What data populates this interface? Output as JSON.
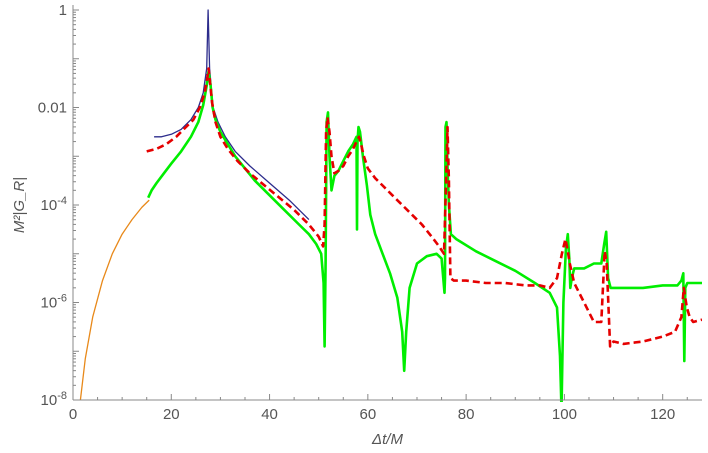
{
  "chart_data": {
    "type": "line",
    "title": "",
    "xlabel": "Δt/M",
    "ylabel": "M²|G_R|",
    "xlim": [
      0,
      128
    ],
    "ylim_log10": [
      -8,
      0
    ],
    "y_scale": "log",
    "grid": false,
    "x_ticks": [
      {
        "value": 0,
        "label": "0"
      },
      {
        "value": 20,
        "label": "20"
      },
      {
        "value": 40,
        "label": "40"
      },
      {
        "value": 60,
        "label": "60"
      },
      {
        "value": 80,
        "label": "80"
      },
      {
        "value": 100,
        "label": "100"
      },
      {
        "value": 120,
        "label": "120"
      }
    ],
    "y_ticks": [
      {
        "log10": 0,
        "label": "1"
      },
      {
        "log10": -2,
        "label": "0.01"
      },
      {
        "log10": -4,
        "label": "10^-4"
      },
      {
        "log10": -6,
        "label": "10^-6"
      },
      {
        "log10": -8,
        "label": "10^-8"
      }
    ],
    "series": [
      {
        "color": "#e8891a",
        "style": "solid-thin",
        "x": [
          1.5,
          2.5,
          4,
          6,
          8,
          10,
          12,
          14,
          15.5
        ],
        "log10y": [
          -8.0,
          -7.15,
          -6.3,
          -5.55,
          -5.0,
          -4.6,
          -4.3,
          -4.05,
          -3.9
        ]
      },
      {
        "color": "#2c2c8c",
        "style": "solid-thin",
        "x": [
          16.5,
          18,
          20,
          22,
          24,
          25.5,
          26.5,
          27.2,
          27.5,
          27.8,
          28.5,
          29.5,
          31,
          33,
          36,
          40,
          44,
          48
        ],
        "log10y": [
          -2.6,
          -2.6,
          -2.55,
          -2.45,
          -2.25,
          -2.0,
          -1.7,
          -1.2,
          0.0,
          -1.2,
          -2.0,
          -2.3,
          -2.6,
          -2.9,
          -3.2,
          -3.55,
          -3.9,
          -4.3
        ]
      },
      {
        "color": "#00ee00",
        "style": "solid-thick",
        "x": [
          15.3,
          16,
          17,
          18.5,
          20,
          22,
          24,
          25.5,
          26.5,
          27.2,
          27.6,
          28.0,
          28.4,
          29,
          30,
          31.5,
          33,
          35,
          37,
          40,
          43,
          46,
          48,
          49.5,
          50.5,
          51.0,
          51.2,
          51.4,
          51.6,
          51.9,
          52.2,
          52.6,
          53.2,
          54,
          55,
          56,
          57,
          57.7,
          57.8,
          57.9,
          58.1,
          58.4,
          59,
          59.8,
          60.5,
          61.5,
          63,
          64.5,
          66,
          67,
          67.4,
          67.8,
          68.5,
          70,
          72,
          74,
          75,
          75.6,
          75.7,
          75.8,
          76.0,
          76.2,
          76.5,
          76.9,
          78,
          82,
          86,
          90,
          94,
          97,
          98.5,
          99.1,
          99.4,
          99.8,
          100.3,
          100.7,
          101.0,
          101.2,
          101.5,
          102,
          104,
          106,
          107.5,
          108.1,
          108.5,
          108.9,
          109.4,
          112,
          116,
          120,
          123,
          123.8,
          124.2,
          124.4,
          124.6,
          125,
          126,
          128
        ],
        "log10y": [
          -3.85,
          -3.7,
          -3.55,
          -3.35,
          -3.15,
          -2.9,
          -2.6,
          -2.3,
          -1.95,
          -1.55,
          -1.25,
          -1.55,
          -2.0,
          -2.25,
          -2.5,
          -2.75,
          -3.0,
          -3.25,
          -3.5,
          -3.8,
          -4.1,
          -4.4,
          -4.6,
          -4.8,
          -5.0,
          -5.6,
          -6.9,
          -5.2,
          -2.3,
          -2.1,
          -3.0,
          -3.7,
          -3.4,
          -3.3,
          -3.1,
          -2.9,
          -2.75,
          -2.6,
          -4.5,
          -2.7,
          -2.4,
          -2.5,
          -3.0,
          -3.6,
          -4.2,
          -4.6,
          -5.0,
          -5.4,
          -5.9,
          -6.6,
          -7.4,
          -6.6,
          -5.7,
          -5.2,
          -5.05,
          -5.0,
          -5.1,
          -5.8,
          -5.5,
          -2.4,
          -2.3,
          -3.2,
          -4.0,
          -4.6,
          -4.7,
          -4.95,
          -5.15,
          -5.35,
          -5.6,
          -5.8,
          -6.1,
          -7.1,
          -8.2,
          -6.0,
          -4.9,
          -4.6,
          -5.1,
          -5.7,
          -5.5,
          -5.3,
          -5.3,
          -5.2,
          -5.2,
          -4.8,
          -4.55,
          -5.5,
          -5.7,
          -5.7,
          -5.7,
          -5.65,
          -5.65,
          -5.55,
          -5.4,
          -7.2,
          -5.7,
          -5.6,
          -5.6,
          -5.6
        ]
      },
      {
        "color": "#e50000",
        "style": "dashed-thick",
        "x": [
          15,
          17,
          19,
          21,
          23,
          24.5,
          25.8,
          26.8,
          27.4,
          27.6,
          27.8,
          28.3,
          29,
          30,
          31.5,
          33.5,
          36,
          39,
          42,
          45,
          48,
          50,
          50.9,
          51.2,
          51.5,
          51.8,
          52.2,
          52.6,
          53.2,
          54,
          55,
          56,
          57,
          57.7,
          58.2,
          58.6,
          59.2,
          60,
          61.5,
          63,
          65,
          67,
          69,
          71,
          73,
          74.5,
          75.5,
          75.9,
          76.2,
          76.5,
          76.8,
          77.5,
          80,
          84,
          88,
          92,
          95,
          97,
          98.5,
          99.5,
          100.2,
          100.6,
          101.1,
          102,
          104,
          106,
          107.5,
          108.2,
          108.6,
          109.3,
          110,
          112,
          116,
          120,
          122.5,
          123.8,
          124.3,
          124.9,
          125.5,
          126.2,
          128
        ],
        "log10y": [
          -2.9,
          -2.85,
          -2.75,
          -2.6,
          -2.4,
          -2.25,
          -2.0,
          -1.7,
          -1.35,
          -1.2,
          -1.4,
          -1.9,
          -2.3,
          -2.6,
          -2.85,
          -3.1,
          -3.35,
          -3.6,
          -3.85,
          -4.1,
          -4.4,
          -4.65,
          -4.85,
          -4.4,
          -2.5,
          -2.2,
          -2.5,
          -3.0,
          -3.35,
          -3.3,
          -3.2,
          -3.0,
          -2.85,
          -2.7,
          -2.6,
          -2.75,
          -3.0,
          -3.25,
          -3.45,
          -3.6,
          -3.8,
          -4.0,
          -4.2,
          -4.4,
          -4.65,
          -4.85,
          -5.0,
          -3.6,
          -2.4,
          -3.5,
          -5.5,
          -5.55,
          -5.55,
          -5.6,
          -5.6,
          -5.65,
          -5.65,
          -5.7,
          -5.5,
          -5.0,
          -4.7,
          -4.9,
          -5.2,
          -5.6,
          -6.0,
          -6.4,
          -6.4,
          -4.95,
          -5.2,
          -6.9,
          -6.8,
          -6.85,
          -6.8,
          -6.7,
          -6.6,
          -6.3,
          -5.7,
          -6.1,
          -6.3,
          -6.4,
          -6.35
        ]
      }
    ]
  }
}
